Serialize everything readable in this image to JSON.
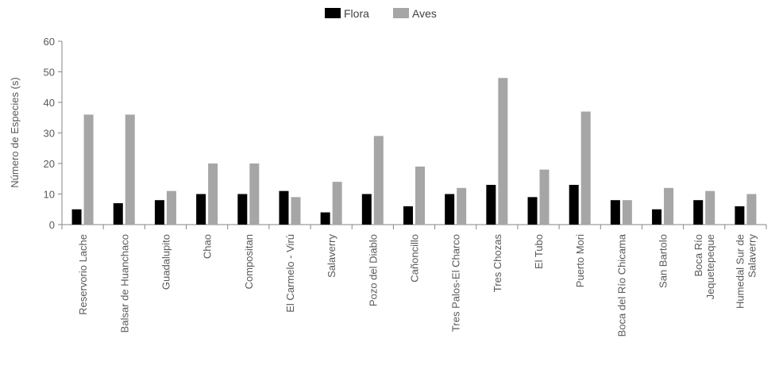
{
  "chart_data": {
    "type": "bar",
    "ylabel": "Número de Especies (s)",
    "xlabel": "",
    "ylim": [
      0,
      60
    ],
    "yticks": [
      0,
      10,
      20,
      30,
      40,
      50,
      60
    ],
    "grid": false,
    "legend_position": "top-center",
    "categories": [
      "Reservorio Lache",
      "Balsar de Huanchaco",
      "Guadalupito",
      "Chao",
      "Compositan",
      "El Carmelo - Virú",
      "Salaverry",
      "Pozo del Diablo",
      "Cañoncillo",
      "Tres Palos-El Charco",
      "Tres Chozas",
      "El Tubo",
      "Puerto Mori",
      "Boca del Río Chicama",
      "San Bartolo",
      "Boca Río Jequetepeque",
      "Humedal Sur de Salaverry"
    ],
    "series": [
      {
        "name": "Flora",
        "color": "#000000",
        "values": [
          5,
          7,
          8,
          10,
          10,
          11,
          4,
          10,
          6,
          10,
          13,
          9,
          13,
          8,
          5,
          8,
          6
        ]
      },
      {
        "name": "Aves",
        "color": "#a6a6a6",
        "values": [
          36,
          36,
          11,
          20,
          20,
          9,
          14,
          29,
          19,
          12,
          48,
          18,
          37,
          8,
          12,
          11,
          10
        ]
      }
    ]
  }
}
